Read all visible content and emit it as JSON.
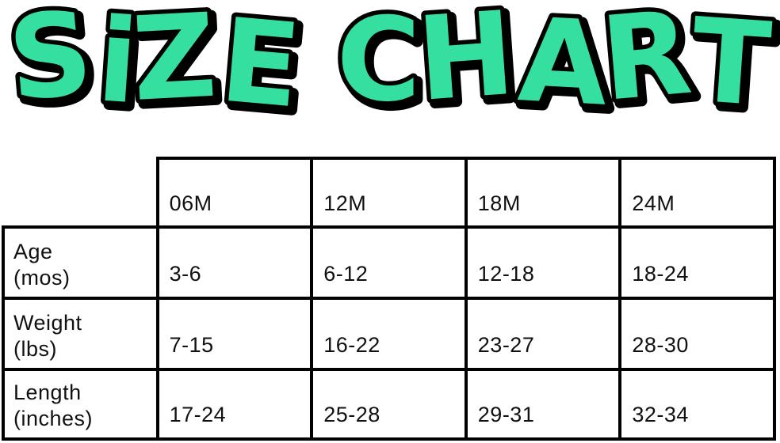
{
  "title": {
    "text": "SiZE CHART"
  },
  "colors": {
    "title_fill": "#35dfa0",
    "title_outline": "#000000",
    "table_border": "#000000",
    "text": "#111111",
    "background": "#ffffff"
  },
  "chart_data": {
    "type": "table",
    "title": "SiZE CHART",
    "columns": [
      "06M",
      "12M",
      "18M",
      "24M"
    ],
    "rows": [
      {
        "label": "Age (mos)",
        "label_line1": "Age",
        "label_line2": "(mos)",
        "values": [
          "3-6",
          "6-12",
          "12-18",
          "18-24"
        ]
      },
      {
        "label": "Weight (lbs)",
        "label_line1": "Weight",
        "label_line2": "(lbs)",
        "values": [
          "7-15",
          "16-22",
          "23-27",
          "28-30"
        ]
      },
      {
        "label": "Length (inches)",
        "label_line1": "Length",
        "label_line2": "(inches)",
        "values": [
          "17-24",
          "25-28",
          "29-31",
          "32-34"
        ]
      }
    ]
  }
}
